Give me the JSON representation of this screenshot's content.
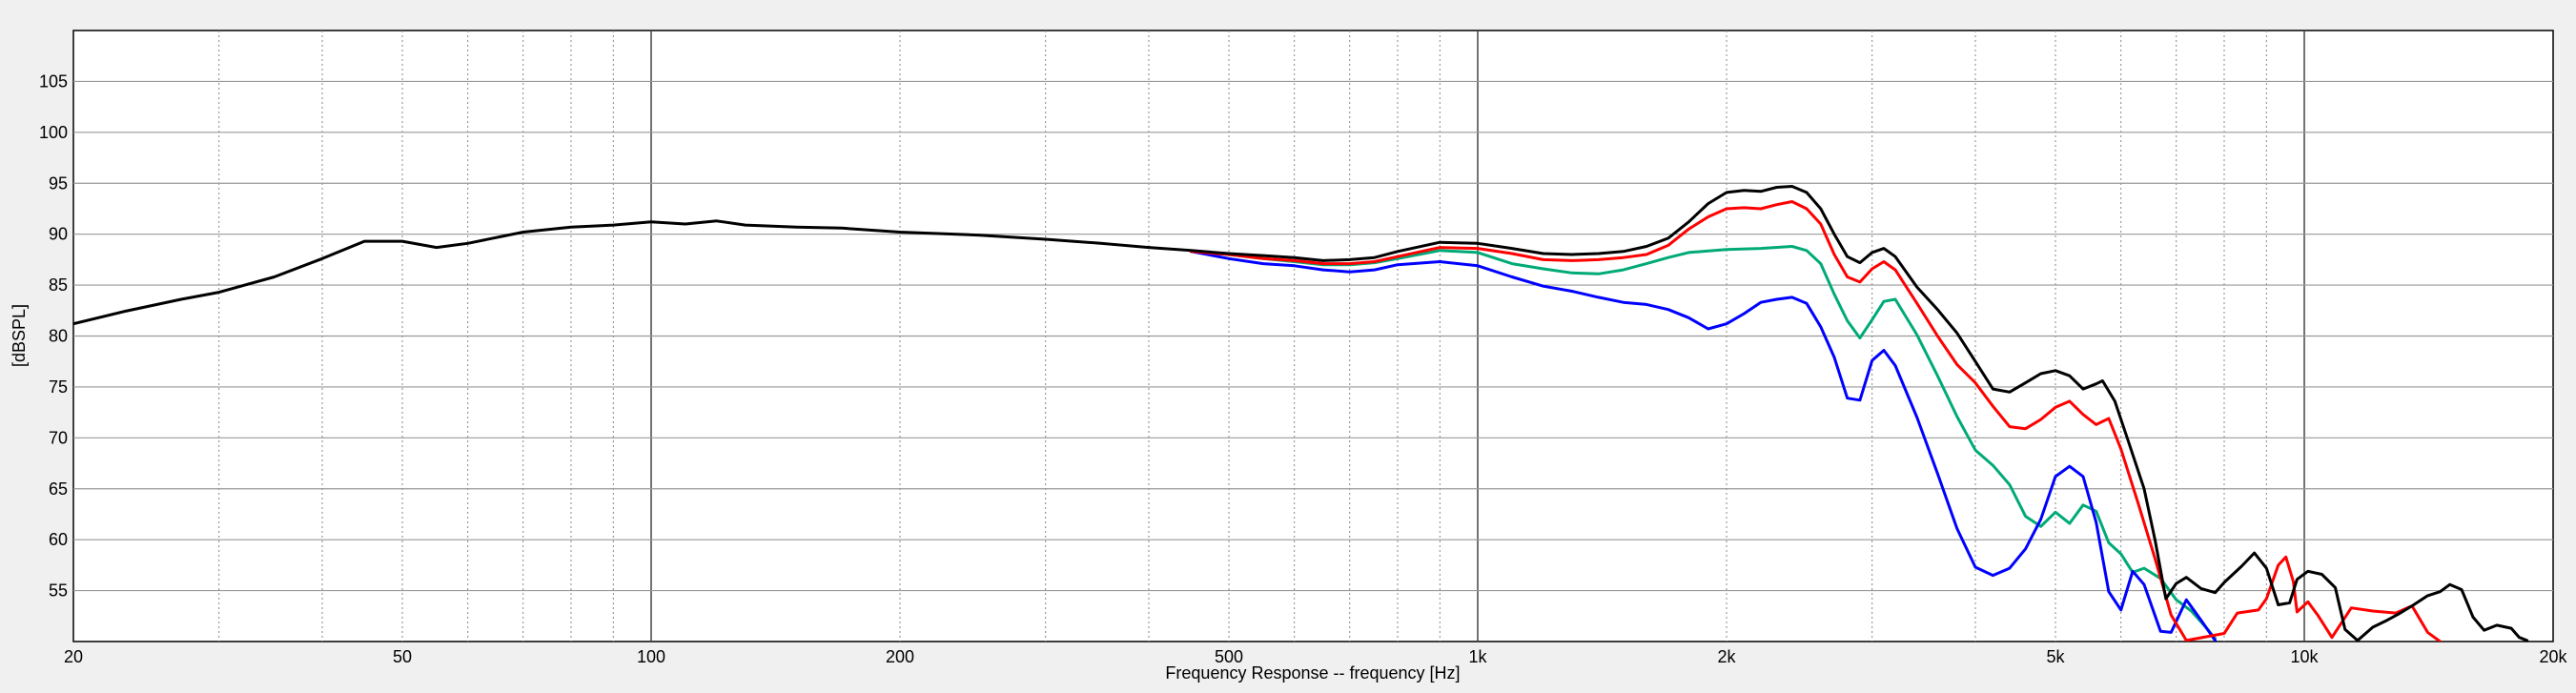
{
  "chart_data": {
    "type": "line",
    "title": "",
    "xlabel": "Frequency Response -- frequency [Hz]",
    "ylabel": "[dBSPL]",
    "xscale": "log",
    "xlim": [
      20,
      20000
    ],
    "ylim": [
      50,
      110
    ],
    "grid": true,
    "legend": "none",
    "x_ticks": [
      20,
      50,
      100,
      200,
      500,
      1000,
      2000,
      5000,
      10000,
      20000
    ],
    "x_tick_labels": [
      "20",
      "50",
      "100",
      "200",
      "500",
      "1k",
      "2k",
      "5k",
      "10k",
      "20k"
    ],
    "y_ticks": [
      55,
      60,
      65,
      70,
      75,
      80,
      85,
      90,
      95,
      100,
      105
    ],
    "y_tick_labels": [
      "55",
      "60",
      "65",
      "70",
      "75",
      "80",
      "85",
      "90",
      "95",
      "100",
      "105"
    ],
    "series": [
      {
        "color": "#000000",
        "points": [
          [
            20,
            81.2
          ],
          [
            23,
            82.4
          ],
          [
            27,
            83.6
          ],
          [
            30,
            84.3
          ],
          [
            35,
            85.8
          ],
          [
            40,
            87.6
          ],
          [
            45,
            89.3
          ],
          [
            50,
            89.3
          ],
          [
            55,
            88.7
          ],
          [
            60,
            89.1
          ],
          [
            70,
            90.2
          ],
          [
            80,
            90.7
          ],
          [
            90,
            90.9
          ],
          [
            100,
            91.2
          ],
          [
            110,
            91
          ],
          [
            120,
            91.3
          ],
          [
            130,
            90.9
          ],
          [
            150,
            90.7
          ],
          [
            170,
            90.6
          ],
          [
            200,
            90.2
          ],
          [
            250,
            89.9
          ],
          [
            300,
            89.5
          ],
          [
            350,
            89.1
          ],
          [
            400,
            88.7
          ],
          [
            450,
            88.4
          ],
          [
            500,
            88.1
          ],
          [
            550,
            87.9
          ],
          [
            600,
            87.7
          ],
          [
            650,
            87.4
          ],
          [
            700,
            87.5
          ],
          [
            750,
            87.7
          ],
          [
            800,
            88.3
          ],
          [
            900,
            89.2
          ],
          [
            1000,
            89.1
          ],
          [
            1100,
            88.6
          ],
          [
            1200,
            88.1
          ],
          [
            1300,
            88
          ],
          [
            1400,
            88.1
          ],
          [
            1500,
            88.3
          ],
          [
            1600,
            88.8
          ],
          [
            1700,
            89.6
          ],
          [
            1800,
            91.2
          ],
          [
            1900,
            93
          ],
          [
            2000,
            94.1
          ],
          [
            2100,
            94.3
          ],
          [
            2200,
            94.2
          ],
          [
            2300,
            94.6
          ],
          [
            2400,
            94.7
          ],
          [
            2500,
            94.1
          ],
          [
            2600,
            92.5
          ],
          [
            2700,
            90
          ],
          [
            2800,
            87.8
          ],
          [
            2900,
            87.2
          ],
          [
            3000,
            88.2
          ],
          [
            3100,
            88.6
          ],
          [
            3200,
            87.8
          ],
          [
            3400,
            84.8
          ],
          [
            3600,
            82.6
          ],
          [
            3800,
            80.3
          ],
          [
            4000,
            77.5
          ],
          [
            4200,
            74.8
          ],
          [
            4400,
            74.5
          ],
          [
            4600,
            75.4
          ],
          [
            4800,
            76.3
          ],
          [
            5000,
            76.6
          ],
          [
            5200,
            76.1
          ],
          [
            5400,
            74.8
          ],
          [
            5600,
            75.3
          ],
          [
            5700,
            75.6
          ],
          [
            5900,
            73.6
          ],
          [
            6100,
            70.1
          ],
          [
            6400,
            65
          ],
          [
            6600,
            59.9
          ],
          [
            6800,
            54.2
          ],
          [
            7000,
            55.7
          ],
          [
            7200,
            56.3
          ],
          [
            7500,
            55.2
          ],
          [
            7800,
            54.8
          ],
          [
            8000,
            55.8
          ],
          [
            8400,
            57.4
          ],
          [
            8700,
            58.7
          ],
          [
            9000,
            57.2
          ],
          [
            9300,
            53.6
          ],
          [
            9600,
            53.8
          ],
          [
            9800,
            56.1
          ],
          [
            10100,
            56.9
          ],
          [
            10500,
            56.6
          ],
          [
            10900,
            55.3
          ],
          [
            11200,
            51.2
          ],
          [
            11600,
            50.1
          ],
          [
            12100,
            51.4
          ],
          [
            12600,
            52.1
          ],
          [
            13000,
            52.7
          ],
          [
            13500,
            53.5
          ],
          [
            14100,
            54.5
          ],
          [
            14600,
            54.9
          ],
          [
            15000,
            55.6
          ],
          [
            15500,
            55.1
          ],
          [
            16000,
            52.4
          ],
          [
            16500,
            51.1
          ],
          [
            17100,
            51.6
          ],
          [
            17800,
            51.3
          ],
          [
            18200,
            50.4
          ],
          [
            18600,
            50.1
          ]
        ]
      },
      {
        "color": "#ff0000",
        "points": [
          [
            450,
            88.3
          ],
          [
            500,
            88
          ],
          [
            550,
            87.6
          ],
          [
            600,
            87.4
          ],
          [
            650,
            87.1
          ],
          [
            700,
            87.1
          ],
          [
            750,
            87.3
          ],
          [
            800,
            87.8
          ],
          [
            900,
            88.7
          ],
          [
            1000,
            88.6
          ],
          [
            1100,
            88.1
          ],
          [
            1200,
            87.5
          ],
          [
            1300,
            87.4
          ],
          [
            1400,
            87.5
          ],
          [
            1500,
            87.7
          ],
          [
            1600,
            88
          ],
          [
            1700,
            88.9
          ],
          [
            1800,
            90.5
          ],
          [
            1900,
            91.7
          ],
          [
            2000,
            92.5
          ],
          [
            2100,
            92.6
          ],
          [
            2200,
            92.5
          ],
          [
            2300,
            92.9
          ],
          [
            2400,
            93.2
          ],
          [
            2500,
            92.5
          ],
          [
            2600,
            91
          ],
          [
            2700,
            88
          ],
          [
            2800,
            85.8
          ],
          [
            2900,
            85.3
          ],
          [
            3000,
            86.6
          ],
          [
            3100,
            87.3
          ],
          [
            3200,
            86.5
          ],
          [
            3400,
            83.2
          ],
          [
            3600,
            80
          ],
          [
            3800,
            77.2
          ],
          [
            4000,
            75.4
          ],
          [
            4200,
            73.1
          ],
          [
            4400,
            71.1
          ],
          [
            4600,
            70.9
          ],
          [
            4800,
            71.8
          ],
          [
            5000,
            73
          ],
          [
            5200,
            73.6
          ],
          [
            5400,
            72.3
          ],
          [
            5600,
            71.3
          ],
          [
            5800,
            71.9
          ],
          [
            6000,
            68.9
          ],
          [
            6300,
            63.5
          ],
          [
            6600,
            58.1
          ],
          [
            6900,
            52.6
          ],
          [
            7200,
            50.1
          ],
          [
            8000,
            50.8
          ],
          [
            8300,
            52.8
          ],
          [
            8800,
            53.1
          ],
          [
            9000,
            54.2
          ],
          [
            9300,
            57.5
          ],
          [
            9500,
            58.3
          ],
          [
            9700,
            55.9
          ],
          [
            9800,
            52.9
          ],
          [
            10100,
            53.9
          ],
          [
            10400,
            52.5
          ],
          [
            10800,
            50.4
          ],
          [
            11400,
            53.3
          ],
          [
            12100,
            53
          ],
          [
            12900,
            52.8
          ],
          [
            13500,
            53.5
          ],
          [
            14100,
            50.9
          ],
          [
            14600,
            50
          ]
        ]
      },
      {
        "color": "#00aa77",
        "points": [
          [
            450,
            88.3
          ],
          [
            500,
            88
          ],
          [
            550,
            87.6
          ],
          [
            600,
            87.3
          ],
          [
            650,
            87
          ],
          [
            700,
            87
          ],
          [
            750,
            87.2
          ],
          [
            800,
            87.6
          ],
          [
            900,
            88.4
          ],
          [
            1000,
            88.2
          ],
          [
            1100,
            87.1
          ],
          [
            1200,
            86.6
          ],
          [
            1300,
            86.2
          ],
          [
            1400,
            86.1
          ],
          [
            1500,
            86.5
          ],
          [
            1600,
            87.1
          ],
          [
            1700,
            87.7
          ],
          [
            1800,
            88.2
          ],
          [
            2000,
            88.5
          ],
          [
            2200,
            88.6
          ],
          [
            2400,
            88.8
          ],
          [
            2500,
            88.4
          ],
          [
            2600,
            87.1
          ],
          [
            2700,
            84.1
          ],
          [
            2800,
            81.5
          ],
          [
            2900,
            79.8
          ],
          [
            3000,
            81.6
          ],
          [
            3100,
            83.4
          ],
          [
            3200,
            83.6
          ],
          [
            3400,
            80.1
          ],
          [
            3600,
            76.1
          ],
          [
            3800,
            72.1
          ],
          [
            4000,
            68.8
          ],
          [
            4200,
            67.3
          ],
          [
            4400,
            65.4
          ],
          [
            4600,
            62.3
          ],
          [
            4800,
            61.3
          ],
          [
            5000,
            62.7
          ],
          [
            5200,
            61.6
          ],
          [
            5400,
            63.4
          ],
          [
            5600,
            62.8
          ],
          [
            5800,
            59.7
          ],
          [
            6000,
            58.6
          ],
          [
            6200,
            56.8
          ],
          [
            6400,
            57.2
          ],
          [
            6700,
            56.2
          ],
          [
            7000,
            54.1
          ],
          [
            7300,
            53
          ],
          [
            7600,
            51.4
          ],
          [
            7800,
            50.3
          ]
        ]
      },
      {
        "color": "#0000ff",
        "points": [
          [
            450,
            88.3
          ],
          [
            500,
            87.6
          ],
          [
            550,
            87.1
          ],
          [
            600,
            86.9
          ],
          [
            650,
            86.5
          ],
          [
            700,
            86.3
          ],
          [
            750,
            86.5
          ],
          [
            800,
            87
          ],
          [
            900,
            87.3
          ],
          [
            1000,
            86.9
          ],
          [
            1100,
            85.8
          ],
          [
            1200,
            84.9
          ],
          [
            1300,
            84.4
          ],
          [
            1400,
            83.8
          ],
          [
            1500,
            83.3
          ],
          [
            1600,
            83.1
          ],
          [
            1700,
            82.6
          ],
          [
            1800,
            81.8
          ],
          [
            1900,
            80.7
          ],
          [
            2000,
            81.2
          ],
          [
            2100,
            82.2
          ],
          [
            2200,
            83.3
          ],
          [
            2300,
            83.6
          ],
          [
            2400,
            83.8
          ],
          [
            2500,
            83.2
          ],
          [
            2600,
            80.9
          ],
          [
            2700,
            77.9
          ],
          [
            2800,
            73.9
          ],
          [
            2900,
            73.7
          ],
          [
            3000,
            77.6
          ],
          [
            3100,
            78.6
          ],
          [
            3200,
            77.1
          ],
          [
            3400,
            72
          ],
          [
            3600,
            66.5
          ],
          [
            3800,
            61.1
          ],
          [
            4000,
            57.3
          ],
          [
            4200,
            56.5
          ],
          [
            4400,
            57.2
          ],
          [
            4600,
            59.1
          ],
          [
            4800,
            62
          ],
          [
            5000,
            66.2
          ],
          [
            5200,
            67.2
          ],
          [
            5400,
            66.2
          ],
          [
            5600,
            61.7
          ],
          [
            5800,
            54.9
          ],
          [
            6000,
            53.1
          ],
          [
            6200,
            56.9
          ],
          [
            6400,
            55.6
          ],
          [
            6700,
            51
          ],
          [
            6900,
            50.9
          ],
          [
            7200,
            54.1
          ],
          [
            7500,
            52.1
          ],
          [
            7800,
            50.1
          ]
        ]
      }
    ]
  }
}
